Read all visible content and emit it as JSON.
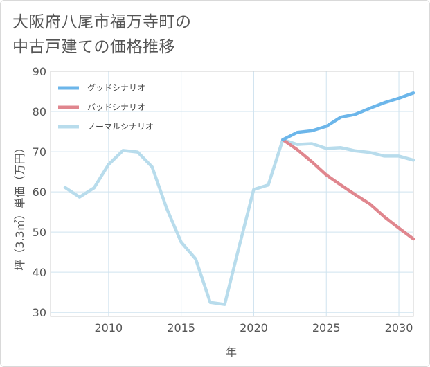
{
  "chart_data": {
    "type": "line",
    "title_lines": [
      "大阪府八尾市福万寺町の",
      "中古戸建ての価格推移"
    ],
    "xlabel": "年",
    "ylabel": "坪（3.3㎡）単価（万円）",
    "xlim": [
      2006,
      2031
    ],
    "ylim": [
      29,
      90
    ],
    "xticks": [
      2010,
      2015,
      2020,
      2025,
      2030
    ],
    "yticks": [
      30,
      40,
      50,
      60,
      70,
      80,
      90
    ],
    "grid": true,
    "legend_position": "top-left",
    "series": [
      {
        "name": "グッドシナリオ",
        "color": "#6cb6ea",
        "x": [
          2022,
          2023,
          2024,
          2025,
          2026,
          2027,
          2028,
          2029,
          2030,
          2031
        ],
        "y": [
          73.0,
          74.8,
          75.2,
          76.3,
          78.6,
          79.3,
          80.8,
          82.2,
          83.3,
          84.6
        ]
      },
      {
        "name": "バッドシナリオ",
        "color": "#e0868e",
        "x": [
          2022,
          2023,
          2024,
          2025,
          2026,
          2027,
          2028,
          2029,
          2030,
          2031
        ],
        "y": [
          73.0,
          70.5,
          67.5,
          64.2,
          61.7,
          59.3,
          57.0,
          53.8,
          51.0,
          48.3
        ]
      },
      {
        "name": "ノーマルシナリオ",
        "color": "#b8dcec",
        "x": [
          2007,
          2008,
          2009,
          2010,
          2011,
          2012,
          2013,
          2014,
          2015,
          2016,
          2017,
          2018,
          2019,
          2020,
          2021,
          2022,
          2023,
          2024,
          2025,
          2026,
          2027,
          2028,
          2029,
          2030,
          2031
        ],
        "y": [
          61.1,
          58.7,
          61.0,
          66.8,
          70.3,
          69.9,
          66.2,
          55.9,
          47.5,
          43.3,
          32.5,
          32.0,
          46.5,
          60.6,
          61.7,
          73.0,
          71.8,
          72.0,
          70.8,
          71.0,
          70.2,
          69.8,
          68.9,
          68.9,
          67.9
        ]
      }
    ]
  }
}
